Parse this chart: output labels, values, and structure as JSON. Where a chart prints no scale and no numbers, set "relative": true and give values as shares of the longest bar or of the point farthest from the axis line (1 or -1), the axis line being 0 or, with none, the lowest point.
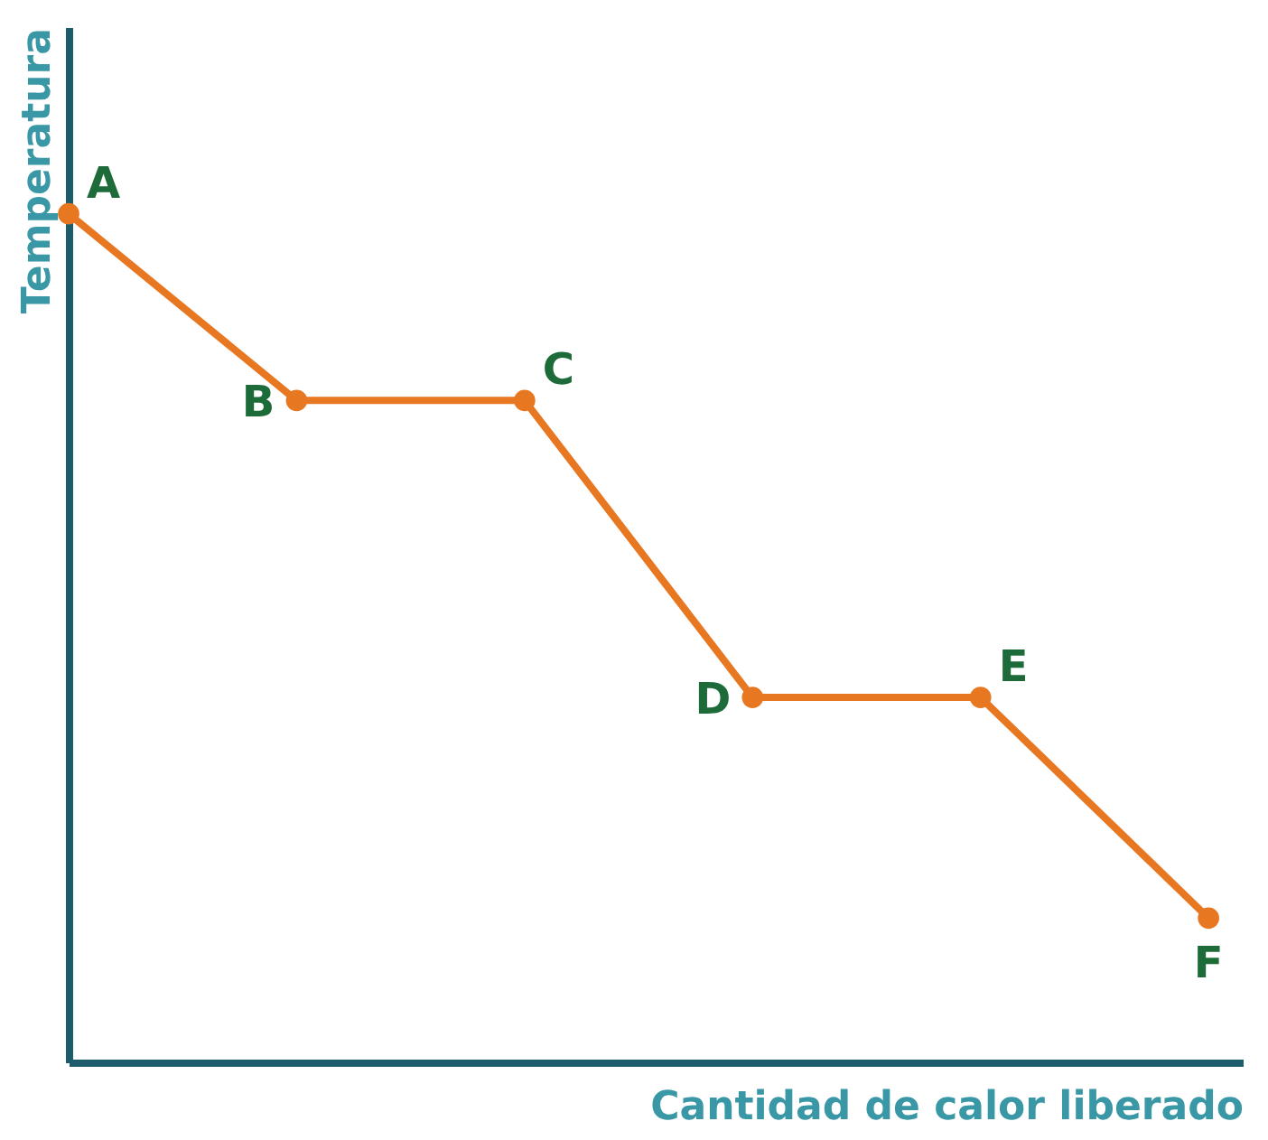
{
  "chart_data": {
    "type": "line",
    "relative": true,
    "xlabel": "Cantidad de calor liberado",
    "ylabel": "Temperatura",
    "categories": [
      null,
      null,
      null,
      null,
      null,
      null
    ],
    "series": [
      {
        "color": "#e87722",
        "values": [
          1,
          0.78,
          0.78,
          0.43,
          0.43,
          0.17
        ]
      }
    ],
    "annotations": [
      "A",
      "B",
      "C",
      "D",
      "E",
      "F"
    ],
    "marker": "circle",
    "line_style": "solid",
    "tick_labels": false
  }
}
